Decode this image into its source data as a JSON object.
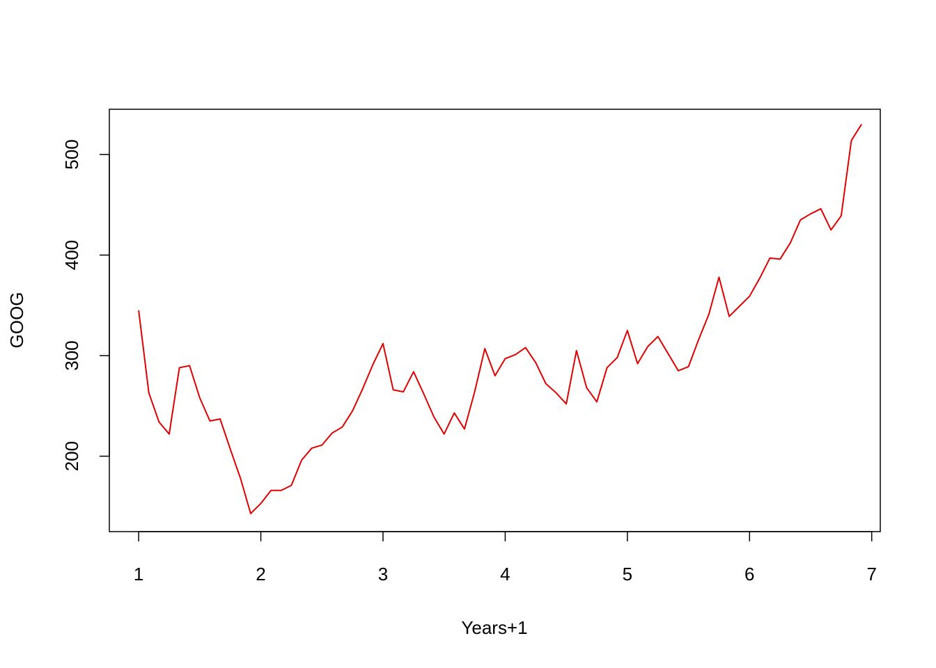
{
  "chart_data": {
    "type": "line",
    "title": "",
    "xlabel": "Years+1",
    "ylabel": "GOOG",
    "xlim": [
      0.76,
      7.07
    ],
    "ylim": [
      125,
      545
    ],
    "x_ticks": [
      1,
      2,
      3,
      4,
      5,
      6,
      7
    ],
    "y_ticks": [
      200,
      300,
      400,
      500
    ],
    "x_tick_labels": [
      "1",
      "2",
      "3",
      "4",
      "5",
      "6",
      "7"
    ],
    "y_tick_labels": [
      "200",
      "300",
      "400",
      "500"
    ],
    "grid": false,
    "legend": "none",
    "line_color": "#e00000",
    "x_start": 1,
    "x_step": 0.08333333,
    "series": [
      {
        "values": [
          345,
          263,
          234,
          222,
          288,
          290,
          258,
          235,
          237,
          207,
          178,
          143,
          153,
          166,
          166,
          171,
          196,
          208,
          211,
          223,
          229,
          245,
          267,
          291,
          312,
          266,
          264,
          284,
          262,
          239,
          222,
          243,
          227,
          264,
          307,
          280,
          297,
          301,
          308,
          293,
          272,
          263,
          252,
          305,
          268,
          254,
          288,
          298,
          325,
          292,
          309,
          319,
          302,
          285,
          289,
          316,
          341,
          378,
          339,
          349,
          359,
          377,
          397,
          396,
          412,
          435,
          441,
          446,
          425,
          439,
          514,
          530
        ]
      }
    ]
  }
}
